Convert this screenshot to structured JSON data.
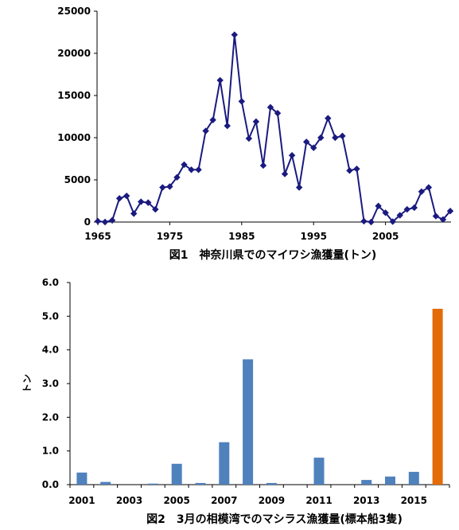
{
  "chart_data": [
    {
      "type": "line",
      "title": "",
      "caption": "図1　神奈川県でのマイワシ漁獲量(トン)",
      "xlabel": "",
      "ylabel": "",
      "xlim": [
        1965,
        2014
      ],
      "ylim": [
        0,
        25000
      ],
      "x_ticks": [
        "1965",
        "1975",
        "1985",
        "1995",
        "2005"
      ],
      "y_ticks": [
        "0",
        "5000",
        "10000",
        "15000",
        "20000",
        "25000"
      ],
      "grid": false,
      "color": "#1a1a80",
      "series": [
        {
          "x": [
            1965,
            1966,
            1967,
            1968,
            1969,
            1970,
            1971,
            1972,
            1973,
            1974,
            1975,
            1976,
            1977,
            1978,
            1979,
            1980,
            1981,
            1982,
            1983,
            1984,
            1985,
            1986,
            1987,
            1988,
            1989,
            1990,
            1991,
            1992,
            1993,
            1994,
            1995,
            1996,
            1997,
            1998,
            1999,
            2000,
            2001,
            2002,
            2003,
            2004,
            2005,
            2006,
            2007,
            2008,
            2009,
            2010,
            2011,
            2012,
            2013,
            2014
          ],
          "values": [
            100,
            0,
            200,
            2800,
            3100,
            1000,
            2400,
            2300,
            1500,
            4100,
            4200,
            5300,
            6800,
            6200,
            6200,
            10800,
            12100,
            16800,
            11400,
            22200,
            14300,
            9900,
            11900,
            6700,
            13600,
            12900,
            5700,
            7900,
            4100,
            9500,
            8800,
            10000,
            12300,
            10000,
            10200,
            6100,
            6300,
            100,
            0,
            1900,
            1100,
            50,
            800,
            1500,
            1700,
            3600,
            4100,
            700,
            300,
            1300
          ]
        }
      ]
    },
    {
      "type": "bar",
      "title": "",
      "caption": "図2　3月の相模湾でのマシラス漁獲量(標本船3隻)",
      "xlabel": "",
      "ylabel": "トン",
      "ylim": [
        0,
        6
      ],
      "y_ticks": [
        "0.0",
        "1.0",
        "2.0",
        "3.0",
        "4.0",
        "5.0",
        "6.0"
      ],
      "x_ticks": [
        "2001",
        "2003",
        "2005",
        "2007",
        "2009",
        "2011",
        "2013",
        "2015"
      ],
      "grid": false,
      "categories": [
        "2001",
        "2002",
        "2003",
        "2004",
        "2005",
        "2006",
        "2007",
        "2008",
        "2009",
        "2010",
        "2011",
        "2012",
        "2013",
        "2014",
        "2015",
        "2016"
      ],
      "values": [
        0.36,
        0.08,
        0,
        0.03,
        0.62,
        0.05,
        1.26,
        3.72,
        0.05,
        0,
        0.8,
        0,
        0.14,
        0.24,
        0.38,
        5.22
      ],
      "colors": [
        "#4f81bd",
        "#4f81bd",
        "#4f81bd",
        "#4f81bd",
        "#4f81bd",
        "#4f81bd",
        "#4f81bd",
        "#4f81bd",
        "#4f81bd",
        "#4f81bd",
        "#4f81bd",
        "#4f81bd",
        "#4f81bd",
        "#4f81bd",
        "#4f81bd",
        "#e36c09"
      ]
    }
  ]
}
